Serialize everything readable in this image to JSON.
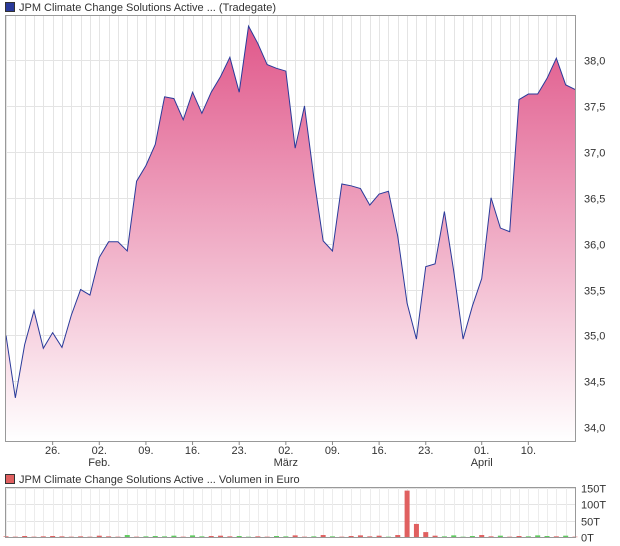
{
  "price_chart": {
    "legend_label": "JPM Climate Change Solutions Active ... (Tradegate)",
    "legend_color": "#2a3a9a",
    "line_color": "#2a3a9a",
    "fill_top_color": "#e0578a",
    "fill_bottom_color": "#ffffff"
  },
  "volume_chart": {
    "legend_label": "JPM Climate Change Solutions Active ... Volumen in Euro",
    "legend_color": "#e06060",
    "up_color": "#5ecb5e",
    "down_color": "#e06060"
  },
  "chart_data": [
    {
      "type": "area",
      "series": [
        {
          "values": [
            35.0,
            34.32,
            34.9,
            35.27,
            34.86,
            35.03,
            34.87,
            35.22,
            35.5,
            35.44,
            35.85,
            36.02,
            36.02,
            35.92,
            36.68,
            36.85,
            37.08,
            37.6,
            37.58,
            37.35,
            37.65,
            37.42,
            37.65,
            37.82,
            38.03,
            37.65,
            38.37,
            38.18,
            37.95,
            37.91,
            37.88,
            37.04,
            37.5,
            36.72,
            36.03,
            35.92,
            36.65,
            36.63,
            36.6,
            36.42,
            36.54,
            36.57,
            36.08,
            35.35,
            34.96,
            35.75,
            35.78,
            36.35,
            35.7,
            34.96,
            35.32,
            35.62,
            36.5,
            36.17,
            36.13,
            37.57,
            37.63,
            37.63,
            37.8,
            38.02,
            37.73,
            37.68
          ]
        }
      ],
      "x_tick_labels": [
        "26.",
        "02.",
        "09.",
        "16.",
        "23.",
        "02.",
        "09.",
        "16.",
        "23.",
        "01.",
        "10."
      ],
      "x_tick_index": [
        5,
        10,
        15,
        20,
        25,
        30,
        35,
        40,
        45,
        51,
        56
      ],
      "month_labels": [
        "Feb.",
        "März",
        "April"
      ],
      "month_label_index": [
        10,
        30,
        51
      ],
      "y_ticks": [
        34.0,
        34.5,
        35.0,
        35.5,
        36.0,
        36.5,
        37.0,
        37.5,
        38.0
      ],
      "y_tick_labels": [
        "34,0",
        "34,5",
        "35,0",
        "35,5",
        "36,0",
        "36,5",
        "37,0",
        "37,5",
        "38,0"
      ],
      "ylim": [
        33.85,
        38.48
      ],
      "grid": true,
      "y_axis_side": "right"
    },
    {
      "type": "bar",
      "series": [
        {
          "values": [
            2,
            1,
            3,
            1,
            2,
            3,
            2,
            1,
            2,
            1,
            4,
            2,
            1,
            6,
            1,
            2,
            3,
            2,
            4,
            1,
            5,
            2,
            3,
            4,
            2,
            3,
            1,
            2,
            1,
            3,
            2,
            5,
            1,
            2,
            6,
            2,
            1,
            3,
            5,
            2,
            4,
            1,
            6,
            142,
            40,
            15,
            4,
            2,
            5,
            1,
            3,
            6,
            2,
            4,
            1,
            3,
            2,
            5,
            3,
            2,
            4,
            1
          ],
          "direction": [
            "d",
            "d",
            "d",
            "d",
            "d",
            "d",
            "d",
            "d",
            "d",
            "d",
            "d",
            "d",
            "d",
            "u",
            "d",
            "u",
            "u",
            "u",
            "u",
            "d",
            "u",
            "u",
            "d",
            "d",
            "d",
            "u",
            "u",
            "d",
            "d",
            "u",
            "u",
            "d",
            "d",
            "u",
            "d",
            "u",
            "d",
            "d",
            "d",
            "d",
            "d",
            "u",
            "d",
            "d",
            "d",
            "d",
            "d",
            "u",
            "u",
            "u",
            "u",
            "d",
            "d",
            "u",
            "d",
            "d",
            "u",
            "u",
            "u",
            "d",
            "u",
            "d"
          ]
        }
      ],
      "y_ticks": [
        0,
        50,
        100,
        150
      ],
      "y_tick_labels": [
        "0T",
        "50T",
        "100T",
        "150T"
      ],
      "ylim": [
        0,
        150
      ],
      "grid": true,
      "y_axis_side": "right"
    }
  ]
}
